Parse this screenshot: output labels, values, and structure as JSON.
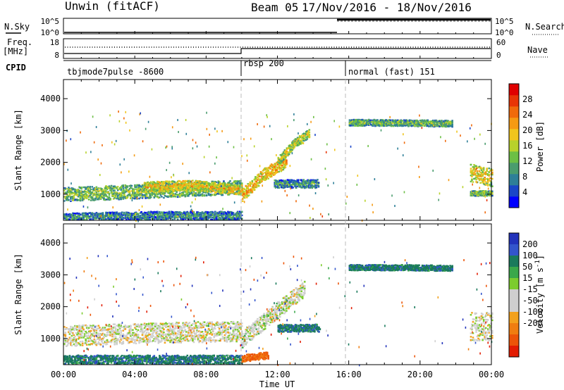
{
  "header": {
    "station": "Unwin (fitACF)",
    "beam": "Beam 05",
    "dates": "17/Nov/2016 - 18/Nov/2016"
  },
  "status_panels": {
    "nsky": {
      "label": "N.Sky",
      "ticks": [
        "10^5",
        "10^0"
      ],
      "right_label": "N.Search",
      "right_ticks": [
        "10^5",
        "10^0"
      ]
    },
    "freq": {
      "label_line1": "Freq.",
      "label_line2": "[MHz]",
      "ticks": [
        "18",
        "8"
      ],
      "right_label": "Nave",
      "right_ticks": [
        "60",
        "0"
      ]
    },
    "cpid": {
      "label": "CPID",
      "segments": [
        {
          "label": "tbjmode7pulse -8600",
          "start_hour": 0
        },
        {
          "label": "rbsp 200",
          "start_hour": 10
        },
        {
          "label": "normal (fast) 151",
          "start_hour": 16
        }
      ]
    }
  },
  "chart_data": [
    {
      "type": "heatmap",
      "quantity": "Power",
      "ylabel": "Slant Range [km]",
      "ylim": [
        180,
        4600
      ],
      "yticks": [
        "1000",
        "2000",
        "3000",
        "4000"
      ],
      "ytick_values": [
        1000,
        2000,
        3000,
        4000
      ],
      "colorbar": {
        "label": "Power [dB]",
        "range": [
          0,
          32
        ],
        "ticks": [
          "4",
          "8",
          "12",
          "16",
          "20",
          "24",
          "28"
        ],
        "tick_values": [
          4,
          8,
          12,
          16,
          20,
          24,
          28
        ],
        "colors": [
          "#0000ff",
          "#1a46c8",
          "#2e7f98",
          "#4a9c6e",
          "#6cbf45",
          "#b8d22b",
          "#f0c51c",
          "#f59a13",
          "#f06a0b",
          "#e83506",
          "#e00000"
        ]
      },
      "bands": [
        {
          "t0": 0.0,
          "t1": 10.0,
          "r0": 1020,
          "r1": 1120,
          "r2": 1250,
          "v": 14,
          "w": 220
        },
        {
          "t0": 4.5,
          "t1": 10.0,
          "r0": 1250,
          "r1": 1300,
          "r2": 1150,
          "v": 20,
          "w": 160
        },
        {
          "t0": 0.0,
          "t1": 10.0,
          "r0": 300,
          "r1": 350,
          "r2": 350,
          "v": 9,
          "w": 130
        },
        {
          "t0": 10.0,
          "t1": 12.5,
          "r0": 1000,
          "r1": 1650,
          "r2": 2050,
          "v": 22,
          "w": 200
        },
        {
          "t0": 12.0,
          "t1": 13.8,
          "r0": 2050,
          "r1": 2600,
          "r2": 2950,
          "v": 17,
          "w": 140
        },
        {
          "t0": 11.8,
          "t1": 14.3,
          "r0": 1350,
          "r1": 1350,
          "r2": 1350,
          "v": 10,
          "w": 130
        },
        {
          "t0": 16.0,
          "t1": 21.8,
          "r0": 3270,
          "r1": 3260,
          "r2": 3240,
          "v": 13,
          "w": 100
        },
        {
          "t0": 22.8,
          "t1": 24.0,
          "r0": 1700,
          "r1": 1600,
          "r2": 1550,
          "v": 19,
          "w": 280
        },
        {
          "t0": 22.8,
          "t1": 24.0,
          "r0": 1050,
          "r1": 1050,
          "r2": 1050,
          "v": 14,
          "w": 80
        }
      ]
    },
    {
      "type": "heatmap",
      "quantity": "Velocity",
      "ylabel": "Slant Range [km]",
      "xlabel": "Time UT",
      "ylim": [
        180,
        4600
      ],
      "xlim": [
        0,
        24
      ],
      "yticks": [
        "1000",
        "2000",
        "3000",
        "4000"
      ],
      "ytick_values": [
        1000,
        2000,
        3000,
        4000
      ],
      "xticks": [
        "00:00",
        "04:00",
        "08:00",
        "12:00",
        "16:00",
        "20:00",
        "00:00"
      ],
      "xtick_values": [
        0,
        4,
        8,
        12,
        16,
        20,
        24
      ],
      "colorbar": {
        "label": "Velocity [m s^-1]",
        "ticks": [
          "200",
          "100",
          "50",
          "15",
          "-15",
          "-50",
          "-100",
          "-200"
        ],
        "colors": [
          "#2233bb",
          "#3355cc",
          "#1a7a5c",
          "#3aa84a",
          "#7ccc2e",
          "#cfcfcf",
          "#cfcfcf",
          "#f3a11d",
          "#f07d10",
          "#ec5408",
          "#e21c02"
        ]
      },
      "bands": [
        {
          "t0": 0.0,
          "t1": 10.0,
          "r0": 1100,
          "r1": 1200,
          "r2": 1250,
          "v": 0,
          "w": 320
        },
        {
          "t0": 0.0,
          "t1": 10.0,
          "r0": 350,
          "r1": 350,
          "r2": 350,
          "v": 60,
          "w": 150
        },
        {
          "t0": 10.0,
          "t1": 13.5,
          "r0": 1000,
          "r1": 1800,
          "r2": 2600,
          "v": 5,
          "w": 260
        },
        {
          "t0": 12.0,
          "t1": 14.3,
          "r0": 1350,
          "r1": 1350,
          "r2": 1350,
          "v": 60,
          "w": 120
        },
        {
          "t0": 10.0,
          "t1": 11.5,
          "r0": 400,
          "r1": 450,
          "r2": 500,
          "v": -80,
          "w": 110
        },
        {
          "t0": 16.0,
          "t1": 21.8,
          "r0": 3250,
          "r1": 3250,
          "r2": 3230,
          "v": 60,
          "w": 90
        },
        {
          "t0": 22.8,
          "t1": 24.0,
          "r0": 1400,
          "r1": 1400,
          "r2": 1400,
          "v": 0,
          "w": 450
        }
      ]
    }
  ]
}
